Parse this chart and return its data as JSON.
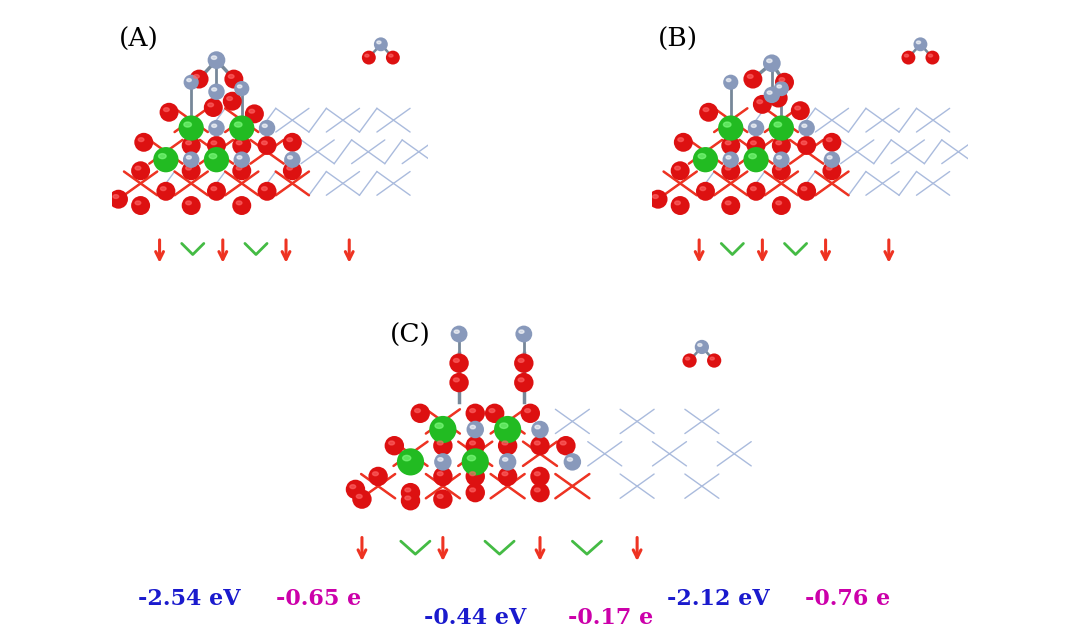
{
  "panel_labels": [
    "(A)",
    "(B)",
    "(C)"
  ],
  "energy_labels": [
    "-2.54 eV",
    "-2.12 eV",
    "-0.44 eV"
  ],
  "charge_labels": [
    "-0.65 e",
    "-0.76 e",
    "-0.17 e"
  ],
  "energy_color": "#1a1acd",
  "charge_color": "#cc00aa",
  "bg_color": "#FFFFFF",
  "panel_label_color": "#000000",
  "label_fontsize": 19,
  "value_fontsize": 16,
  "fig_width": 10.8,
  "fig_height": 6.34,
  "dpi": 100,
  "red_atom": "#dd1111",
  "green_atom": "#22bb22",
  "gray_blue_atom": "#8899bb",
  "lattice_red": "#ee3322",
  "lattice_blue": "#aabbdd",
  "lattice_green": "#44bb44"
}
